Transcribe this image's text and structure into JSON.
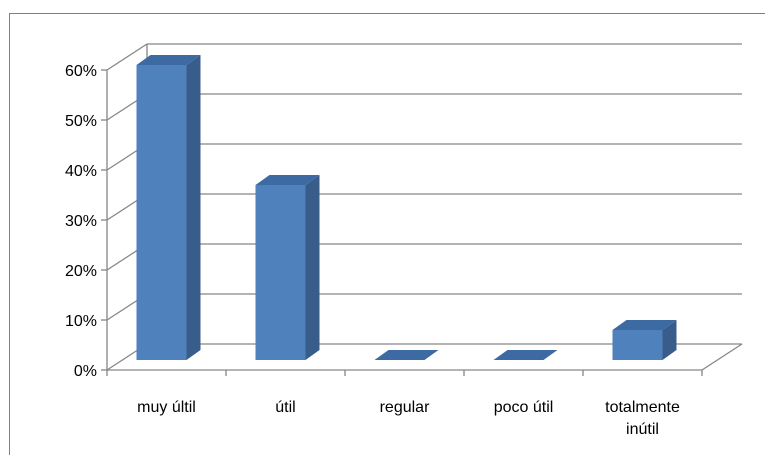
{
  "chart_data": {
    "type": "bar",
    "title": "",
    "xlabel": "",
    "ylabel": "",
    "categories": [
      "muy últil",
      "útil",
      "regular",
      "poco útil",
      "totalmente inútil"
    ],
    "category_lines": [
      [
        "muy últil"
      ],
      [
        "útil"
      ],
      [
        "regular"
      ],
      [
        "poco útil"
      ],
      [
        "totalmente",
        "inútil"
      ]
    ],
    "values": [
      0.59,
      0.35,
      0.0,
      0.0,
      0.06
    ],
    "ylim": [
      0,
      0.6
    ],
    "yticks": [
      0,
      0.1,
      0.2,
      0.3,
      0.4,
      0.5,
      0.6
    ],
    "ytick_labels": [
      "0%",
      "10%",
      "20%",
      "30%",
      "40%",
      "50%",
      "60%"
    ],
    "grid": true,
    "legend": "none",
    "bar_color": "#4f81bd",
    "bar_side_color": "#385d8a",
    "bar_top_color": "#3d6aa3"
  }
}
